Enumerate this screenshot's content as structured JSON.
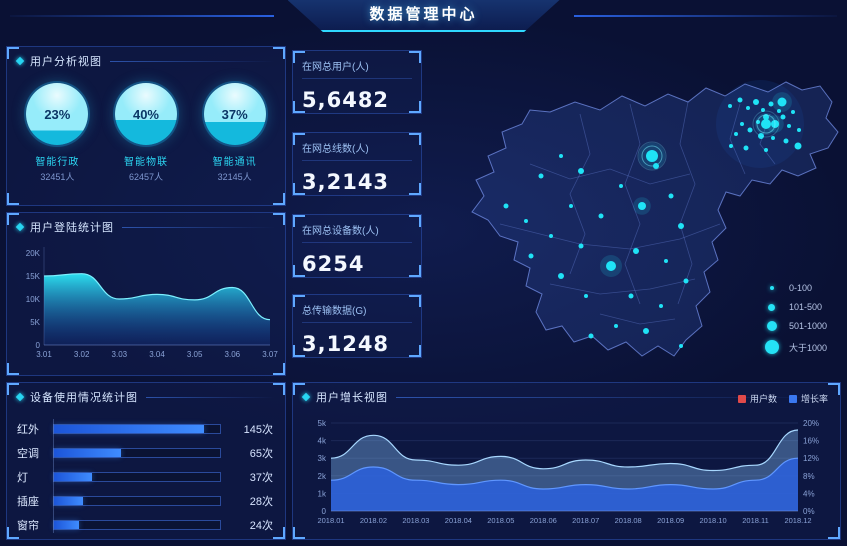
{
  "header": {
    "title": "数据管理中心"
  },
  "panels": {
    "user_analysis": {
      "title": "用户分析视图"
    },
    "login_stats": {
      "title": "用户登陆统计图"
    },
    "device_usage": {
      "title": "设备使用情况统计图"
    },
    "user_growth": {
      "title": "用户增长视图"
    }
  },
  "colors": {
    "background": "#0a1134",
    "accent_cyan": "#27d5f2",
    "panel_border": "#3058be",
    "dot_cyan": "#1fe3f6",
    "legend_red": "#e04a4a",
    "legend_blue": "#3a78f0",
    "bar_fill": "#3f8cff"
  },
  "gauges": [
    {
      "percent": "23%",
      "value": 23,
      "label": "智能行政",
      "count": "32451人"
    },
    {
      "percent": "40%",
      "value": 40,
      "label": "智能物联",
      "count": "62457人"
    },
    {
      "percent": "37%",
      "value": 37,
      "label": "智能通讯",
      "count": "32145人"
    }
  ],
  "stats": [
    {
      "label": "在网总用户(人)",
      "value": "5,6482"
    },
    {
      "label": "在网总线数(人)",
      "value": "3,2143"
    },
    {
      "label": "在网总设备数(人)",
      "value": "6254"
    },
    {
      "label": "总传输数据(G)",
      "value": "3,1248"
    }
  ],
  "map": {
    "legend": [
      "0-100",
      "101-500",
      "501-1000",
      "大于1000"
    ],
    "dot_color": "#1fe3f6",
    "dots": [
      [
        300,
        62,
        2
      ],
      [
        310,
        56,
        2.5
      ],
      [
        318,
        64,
        2
      ],
      [
        326,
        58,
        3
      ],
      [
        333,
        66,
        2
      ],
      [
        341,
        60,
        2.5
      ],
      [
        349,
        67,
        2
      ],
      [
        336,
        73,
        3
      ],
      [
        328,
        78,
        2
      ],
      [
        345,
        80,
        4
      ],
      [
        353,
        73,
        2.5
      ],
      [
        359,
        82,
        2
      ],
      [
        320,
        86,
        2.5
      ],
      [
        312,
        80,
        2
      ],
      [
        306,
        90,
        2
      ],
      [
        331,
        92,
        3
      ],
      [
        343,
        94,
        2
      ],
      [
        356,
        97,
        2.5
      ],
      [
        363,
        68,
        2
      ],
      [
        369,
        86,
        2
      ],
      [
        301,
        102,
        2
      ],
      [
        316,
        104,
        2.5
      ],
      [
        336,
        106,
        2
      ],
      [
        352,
        58,
        4.5
      ],
      [
        368,
        102,
        3.5
      ],
      [
        222,
        112,
        6,
        1
      ],
      [
        336,
        80,
        5,
        1
      ],
      [
        226,
        122,
        3
      ],
      [
        241,
        152,
        2.5
      ],
      [
        212,
        162,
        4
      ],
      [
        251,
        182,
        3
      ],
      [
        191,
        142,
        2
      ],
      [
        171,
        172,
        2.5
      ],
      [
        206,
        207,
        3
      ],
      [
        236,
        217,
        2
      ],
      [
        181,
        222,
        5
      ],
      [
        151,
        202,
        2.5
      ],
      [
        131,
        232,
        3
      ],
      [
        156,
        252,
        2
      ],
      [
        201,
        252,
        2.5
      ],
      [
        231,
        262,
        2
      ],
      [
        121,
        192,
        2
      ],
      [
        101,
        212,
        2.5
      ],
      [
        141,
        162,
        2
      ],
      [
        256,
        237,
        2.5
      ],
      [
        216,
        287,
        3
      ],
      [
        186,
        282,
        2
      ],
      [
        161,
        292,
        2.5
      ],
      [
        96,
        177,
        2
      ],
      [
        76,
        162,
        2.5
      ],
      [
        251,
        302,
        2
      ],
      [
        111,
        132,
        2.5
      ],
      [
        131,
        112,
        2
      ],
      [
        151,
        127,
        3
      ]
    ]
  },
  "chart_data": [
    {
      "id": "login-chart",
      "type": "area",
      "title": "用户登陆统计图",
      "x": [
        "3.01",
        "3.02",
        "3.03",
        "3.04",
        "3.05",
        "3.06",
        "3.07"
      ],
      "values": [
        15000,
        15500,
        10000,
        11000,
        9800,
        12500,
        5500
      ],
      "yticks": [
        "0",
        "5K",
        "10K",
        "15K",
        "20K"
      ],
      "ylim": [
        0,
        20000
      ],
      "grid": false,
      "legend_position": "none"
    },
    {
      "id": "device-usage",
      "type": "bar",
      "title": "设备使用情况统计图",
      "categories": [
        "红外",
        "空调",
        "灯",
        "插座",
        "窗帘"
      ],
      "values": [
        145,
        65,
        37,
        28,
        24
      ],
      "unit": "次",
      "xmax": 160,
      "orientation": "horizontal"
    },
    {
      "id": "growth-chart",
      "type": "area",
      "title": "用户增长视图",
      "categories": [
        "2018.01",
        "2018.02",
        "2018.03",
        "2018.04",
        "2018.05",
        "2018.06",
        "2018.07",
        "2018.08",
        "2018.09",
        "2018.10",
        "2018.11",
        "2018.12"
      ],
      "series": [
        {
          "name": "用户数",
          "axis": "left",
          "color": "#e04a4a",
          "values": [
            3000,
            4300,
            2900,
            2600,
            3100,
            2400,
            2900,
            2500,
            2700,
            2300,
            2600,
            4600
          ]
        },
        {
          "name": "增长率",
          "axis": "right",
          "color": "#3a78f0",
          "values": [
            7,
            10,
            7,
            6,
            7,
            5,
            6,
            5,
            6,
            5,
            7,
            12
          ]
        }
      ],
      "left_ticks": [
        "0",
        "1k",
        "2k",
        "3k",
        "4k",
        "5k"
      ],
      "right_ticks": [
        "0%",
        "4%",
        "8%",
        "12%",
        "16%",
        "20%"
      ],
      "left_ylim": [
        0,
        5000
      ],
      "right_ylim": [
        0,
        20
      ],
      "grid": true,
      "legend_position": "top-right"
    }
  ]
}
